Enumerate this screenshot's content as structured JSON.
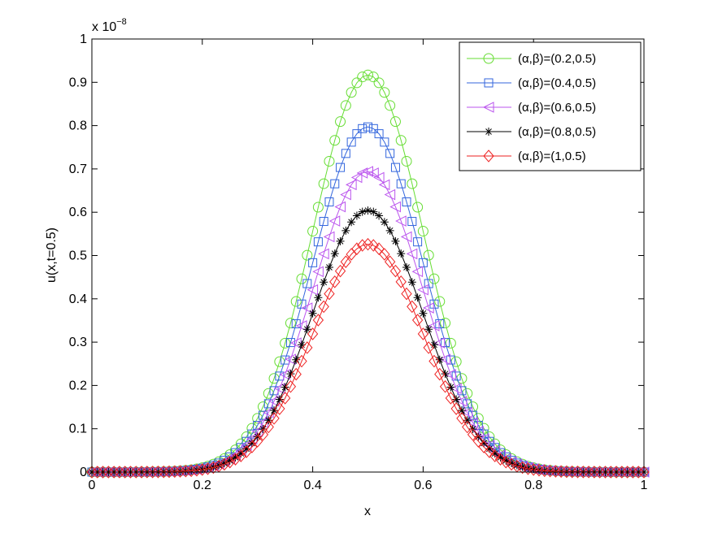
{
  "chart_data": {
    "type": "line",
    "title": "",
    "xlabel": "x",
    "ylabel": "u(x,t=0.5)",
    "y_multiplier_label": "x 10",
    "y_multiplier_exponent": "−8",
    "xlim": [
      0,
      1
    ],
    "ylim": [
      0,
      1
    ],
    "xticks": [
      "0",
      "0.2",
      "0.4",
      "0.6",
      "0.8",
      "1"
    ],
    "yticks": [
      "0",
      "0.1",
      "0.2",
      "0.3",
      "0.4",
      "0.5",
      "0.6",
      "0.7",
      "0.8",
      "0.9",
      "1"
    ],
    "legend_position": "top-right",
    "curve": "gaussian centered at x=0.5, width sigma≈0.1, sampled every 0.01 with markers",
    "x_center": 0.5,
    "sigma": 0.1,
    "x_step": 0.01,
    "series": [
      {
        "name": "(α,β)=(0.2,0.5)",
        "peak": 0.917,
        "color": "#66dd33",
        "marker": "circle"
      },
      {
        "name": "(α,β)=(0.4,0.5)",
        "peak": 0.797,
        "color": "#3366dd",
        "marker": "square"
      },
      {
        "name": "(α,β)=(0.6,0.5)",
        "peak": 0.694,
        "color": "#bb55ee",
        "marker": "triangle-left"
      },
      {
        "name": "(α,β)=(0.8,0.5)",
        "peak": 0.604,
        "color": "#000000",
        "marker": "asterisk"
      },
      {
        "name": "(α,β)=(1,0.5)",
        "peak": 0.526,
        "color": "#ee2222",
        "marker": "diamond"
      }
    ]
  }
}
